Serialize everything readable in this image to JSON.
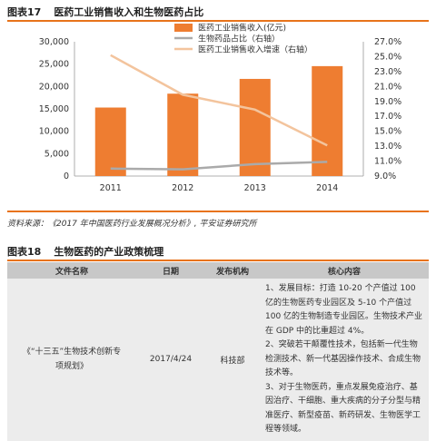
{
  "figure17": {
    "label": "图表17",
    "title": "医药工业销售收入和生物医药占比"
  },
  "chart_data": {
    "type": "bar",
    "categories": [
      "2011",
      "2012",
      "2013",
      "2014"
    ],
    "series": [
      {
        "name": "医药工业销售收入(亿元)",
        "type": "bar",
        "axis": "left",
        "values": [
          15300,
          18400,
          21700,
          24550
        ],
        "color": "#ee7d31"
      },
      {
        "name": "生物药品占比（右轴）",
        "type": "line",
        "axis": "right",
        "values": [
          10.0,
          9.9,
          10.6,
          10.9
        ],
        "color": "#aaaaaa"
      },
      {
        "name": "医药工业销售收入增速（右轴）",
        "type": "line",
        "axis": "right",
        "values": [
          25.2,
          19.9,
          17.9,
          13.1
        ],
        "color": "#f3c49d"
      }
    ],
    "y_left": {
      "min": 0,
      "max": 30000,
      "ticks": [
        "0",
        "5,000",
        "10,000",
        "15,000",
        "20,000",
        "25,000",
        "30,000"
      ]
    },
    "y_right": {
      "min": 9.0,
      "max": 27.0,
      "ticks": [
        "9.0%",
        "11.0%",
        "13.0%",
        "15.0%",
        "17.0%",
        "19.0%",
        "21.0%",
        "23.0%",
        "25.0%",
        "27.0%"
      ]
    },
    "grid": false,
    "legend_position": "top-center"
  },
  "source_text": "资料来源：《2017 年中国医药行业发展概况分析》, 平安证券研究所",
  "figure18": {
    "label": "图表18",
    "title": "生物医药的产业政策梳理",
    "headers": [
      "文件名称",
      "日期",
      "发布机构",
      "核心内容"
    ],
    "row": {
      "name": "《“十三五”生物技术创新专项规划》",
      "date": "2017/4/24",
      "agency": "科技部",
      "content": [
        "1、发展目标：打造 10-20 个产值过 100 亿的生物医药专业园区及 5-10 个产值过 100 亿的生物制造专业园区。生物技术产业在 GDP 中的比重超过 4%。",
        "2、突破若干颠覆性技术，包括新一代生物检测技术、新一代基因操作技术、合成生物技术等。",
        "3、对于生物医药，重点发展免疫治疗、基因治疗、干细胞、重大疾病的分子分型与精准医疗、新型疫苗、新药研发、生物医学工程等领域。"
      ]
    }
  }
}
